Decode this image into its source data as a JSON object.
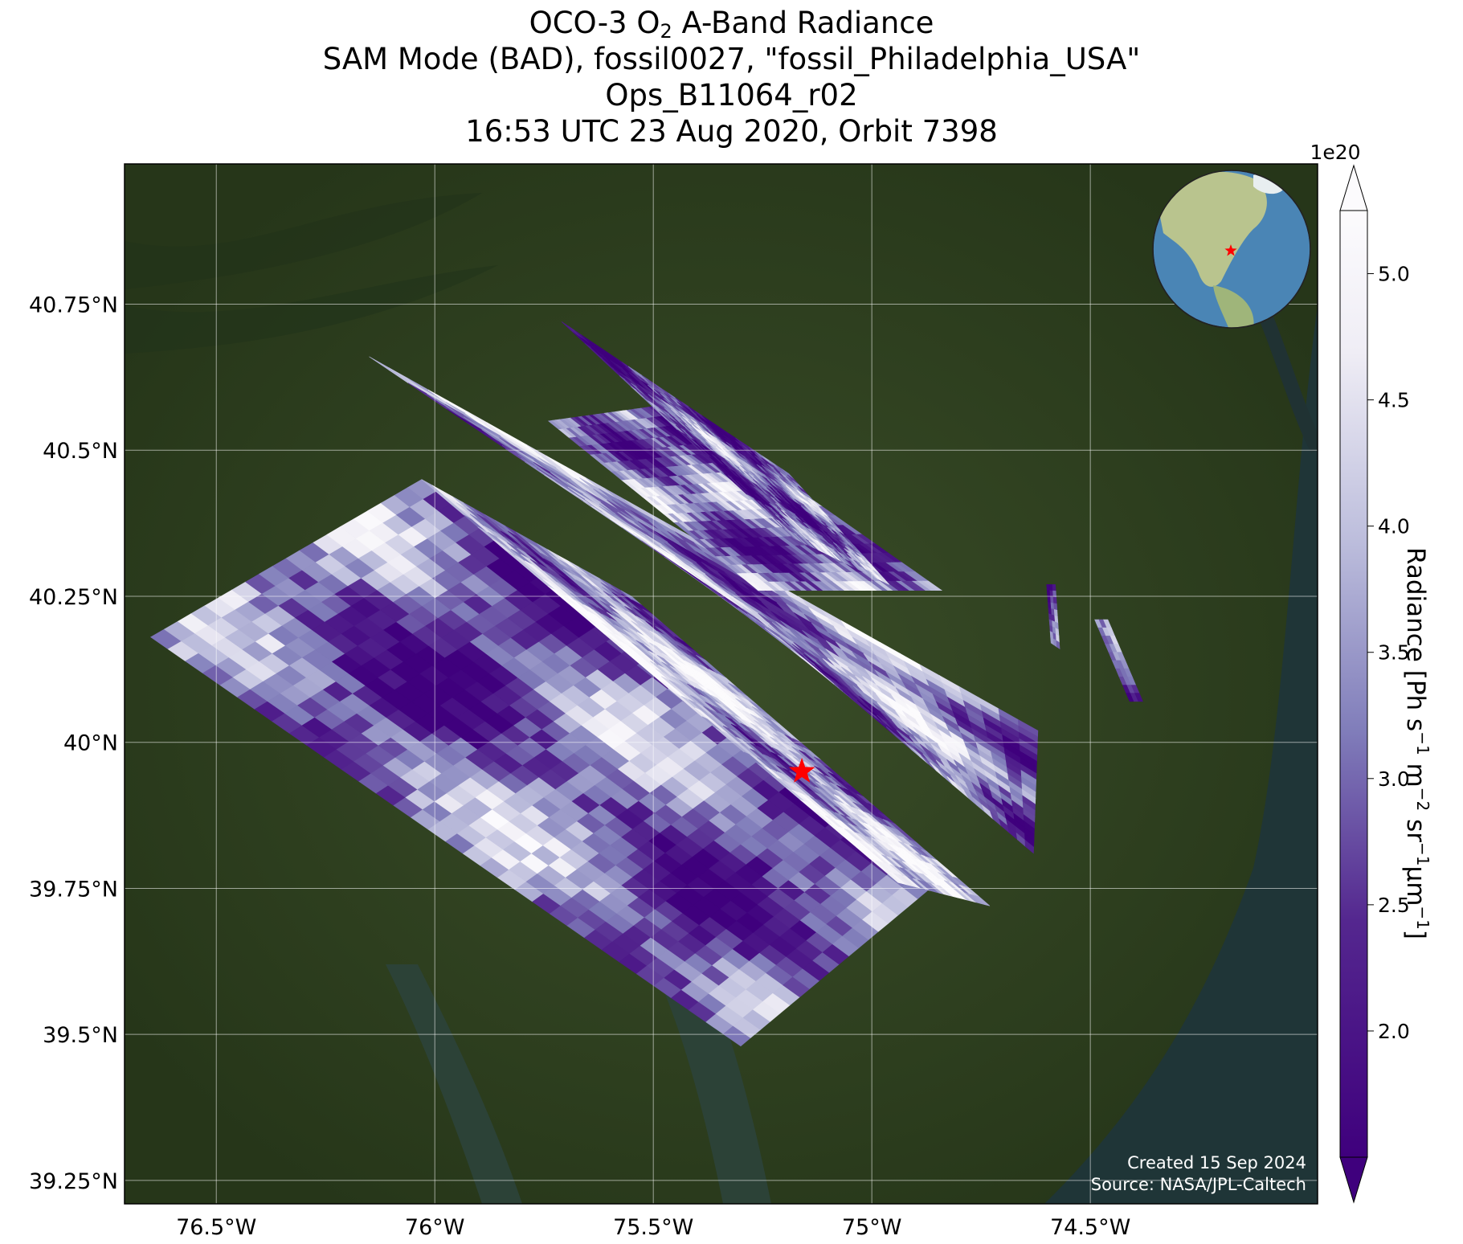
{
  "title": {
    "line1_pre": "OCO-3 O",
    "line1_sub": "2",
    "line1_post": " A-Band Radiance",
    "line2": "SAM Mode (BAD), fossil0027, \"fossil_Philadelphia_USA\"",
    "line3": "Ops_B11064_r02",
    "line4": "16:53 UTC 23 Aug 2020, Orbit 7398"
  },
  "map": {
    "lon_range": [
      -76.71,
      -73.98
    ],
    "lat_range": [
      39.21,
      40.99
    ],
    "lon_ticks": [
      {
        "value": -76.5,
        "label": "76.5°W"
      },
      {
        "value": -76.0,
        "label": "76°W"
      },
      {
        "value": -75.5,
        "label": "75.5°W"
      },
      {
        "value": -75.0,
        "label": "75°W"
      },
      {
        "value": -74.5,
        "label": "74.5°W"
      }
    ],
    "lat_ticks": [
      {
        "value": 40.75,
        "label": "40.75°N"
      },
      {
        "value": 40.5,
        "label": "40.5°N"
      },
      {
        "value": 40.25,
        "label": "40.25°N"
      },
      {
        "value": 40.0,
        "label": "40°N"
      },
      {
        "value": 39.75,
        "label": "39.75°N"
      },
      {
        "value": 39.5,
        "label": "39.5°N"
      },
      {
        "value": 39.25,
        "label": "39.25°N"
      }
    ],
    "grid": true,
    "basemap_color": "#2f4220",
    "ocean_color": "#1e3436",
    "target": {
      "name": "fossil_Philadelphia_USA",
      "lon": -75.16,
      "lat": 39.95,
      "marker": "red-star",
      "color": "#ff0000"
    }
  },
  "colorbar": {
    "cmap": "Purples_r",
    "min": 1.5,
    "max": 5.25,
    "extend": "both",
    "ticks": [
      {
        "value": 2.0,
        "label": "2.0"
      },
      {
        "value": 2.5,
        "label": "2.5"
      },
      {
        "value": 3.0,
        "label": "3.0"
      },
      {
        "value": 3.5,
        "label": "3.5"
      },
      {
        "value": 4.0,
        "label": "4.0"
      },
      {
        "value": 4.5,
        "label": "4.5"
      },
      {
        "value": 5.0,
        "label": "5.0"
      }
    ],
    "multiplier": "1e20",
    "label_main": "Radiance [Ph s",
    "label_sup1": "−1",
    "label_mid1": " m",
    "label_sup2": "−2",
    "label_mid2": " sr",
    "label_sup3": "−1",
    "label_mid3": "μm",
    "label_sup4": "−1",
    "label_end": "]",
    "low_color": "#3f007d",
    "high_color": "#fcfbfd"
  },
  "inset_globe": {
    "center_lon": -75,
    "center_lat": 40,
    "marker": "red-star",
    "ocean_color": "#4a85b5",
    "land_color": "#b9c48e"
  },
  "credits": {
    "created": "Created 15 Sep 2024",
    "source": "Source: NASA/JPL-Caltech"
  },
  "chart_data": {
    "type": "heatmap",
    "title": "OCO-3 O2 A-Band Radiance",
    "xlabel": "",
    "ylabel": "",
    "units": "Ph s−1 m−2 sr−1μm−1 (×1e20)",
    "vmin": 1.5,
    "vmax": 5.25,
    "swaths": [
      {
        "corners": [
          [
            -76.65,
            40.18
          ],
          [
            -76.03,
            40.45
          ],
          [
            -74.85,
            39.76
          ],
          [
            -75.3,
            39.48
          ]
        ],
        "mean": 2.9
      },
      {
        "corners": [
          [
            -76.03,
            40.45
          ],
          [
            -75.55,
            40.25
          ],
          [
            -74.73,
            39.72
          ],
          [
            -74.94,
            39.76
          ]
        ],
        "mean": 3.9
      },
      {
        "corners": [
          [
            -76.15,
            40.66
          ],
          [
            -75.26,
            40.21
          ],
          [
            -74.63,
            39.81
          ],
          [
            -74.62,
            40.02
          ]
        ],
        "mean": 3.4
      },
      {
        "corners": [
          [
            -75.74,
            40.55
          ],
          [
            -75.26,
            40.26
          ],
          [
            -74.84,
            40.26
          ],
          [
            -75.45,
            40.58
          ]
        ],
        "mean": 3.0
      },
      {
        "corners": [
          [
            -75.71,
            40.72
          ],
          [
            -75.18,
            40.35
          ],
          [
            -74.96,
            40.27
          ],
          [
            -75.19,
            40.46
          ]
        ],
        "mean": 2.9
      },
      {
        "corners": [
          [
            -74.6,
            40.27
          ],
          [
            -74.58,
            40.27
          ],
          [
            -74.57,
            40.16
          ],
          [
            -74.59,
            40.17
          ]
        ],
        "mean": 3.0
      },
      {
        "corners": [
          [
            -74.49,
            40.21
          ],
          [
            -74.46,
            40.21
          ],
          [
            -74.38,
            40.07
          ],
          [
            -74.41,
            40.07
          ]
        ],
        "mean": 2.6
      }
    ]
  }
}
